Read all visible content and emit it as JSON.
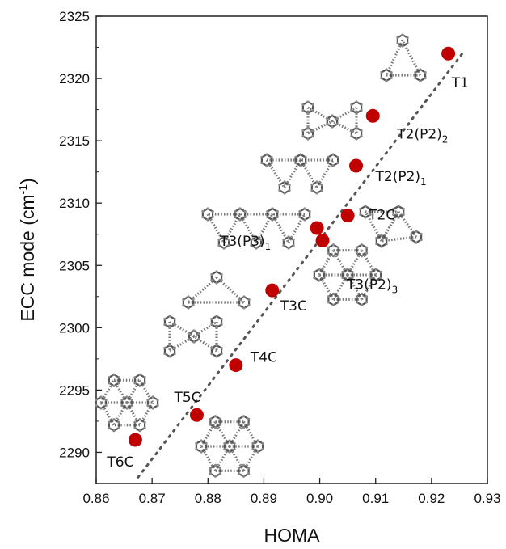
{
  "chart_data": {
    "type": "scatter",
    "xlabel": "HOMA",
    "ylabel_main": "ECC mode (cm",
    "ylabel_sup": "-1",
    "ylabel_close": ")",
    "xlim": [
      0.86,
      0.93
    ],
    "ylim": [
      2287.5,
      2325
    ],
    "xticks": [
      "0.86",
      "0.87",
      "0.88",
      "0.89",
      "0.90",
      "0.91",
      "0.92",
      "0.93"
    ],
    "yticks": [
      "2290",
      "2295",
      "2300",
      "2305",
      "2310",
      "2315",
      "2320",
      "2325"
    ],
    "points": [
      {
        "label": "T1",
        "sub": "",
        "x": 0.923,
        "y": 2322
      },
      {
        "label": "T2(P2)",
        "sub": "2",
        "x": 0.9095,
        "y": 2317
      },
      {
        "label": "T2(P2)",
        "sub": "1",
        "x": 0.9065,
        "y": 2313
      },
      {
        "label": "T2C",
        "sub": "",
        "x": 0.905,
        "y": 2309
      },
      {
        "label": "T3(P3)",
        "sub": "1",
        "x": 0.8995,
        "y": 2308
      },
      {
        "label": "T3(P2)",
        "sub": "3",
        "x": 0.9005,
        "y": 2307
      },
      {
        "label": "T3C",
        "sub": "",
        "x": 0.8915,
        "y": 2303
      },
      {
        "label": "T4C",
        "sub": "",
        "x": 0.885,
        "y": 2297
      },
      {
        "label": "T5C",
        "sub": "",
        "x": 0.878,
        "y": 2293
      },
      {
        "label": "T6C",
        "sub": "",
        "x": 0.867,
        "y": 2291
      }
    ],
    "fit_line": {
      "x": [
        0.8675,
        0.9255
      ],
      "y": [
        2288,
        2322
      ]
    },
    "marker_color": "#c00000",
    "fit_line_color": "#555555",
    "grid": false,
    "legend": "none"
  }
}
